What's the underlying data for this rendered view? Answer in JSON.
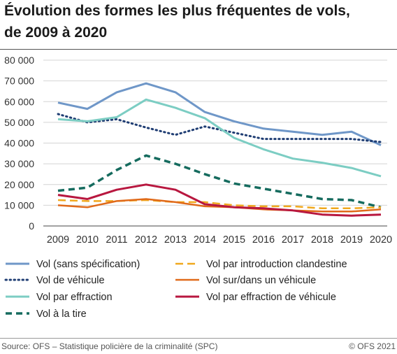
{
  "title_lines": [
    "Évolution des formes les plus fréquentes de vols,",
    "de 2009 à 2020"
  ],
  "source": "Source: OFS – Statistique policière de la criminalité (SPC)",
  "copyright": "© OFS 2021",
  "chart_data": {
    "type": "line",
    "x": [
      "2009",
      "2010",
      "2011",
      "2012",
      "2013",
      "2014",
      "2015",
      "2016",
      "2017",
      "2018",
      "2019",
      "2020"
    ],
    "ylim": [
      0,
      80000
    ],
    "yticks": [
      0,
      10000,
      20000,
      30000,
      40000,
      50000,
      60000,
      70000,
      80000
    ],
    "ytick_labels": [
      "0",
      "10 000",
      "20 000",
      "30 000",
      "40 000",
      "50 000",
      "60 000",
      "70 000",
      "80 000"
    ],
    "grid": "horizontal",
    "legend_placement": "bottom",
    "series": [
      {
        "name": "Vol (sans spécification)",
        "color": "#6f97c8",
        "style": "solid",
        "width": 3,
        "values": [
          59500,
          56500,
          64500,
          68800,
          64500,
          55000,
          50500,
          47000,
          45500,
          44000,
          45500,
          39000
        ]
      },
      {
        "name": "Vol de véhicule",
        "color": "#1f3d73",
        "style": "dotted",
        "width": 3,
        "values": [
          54000,
          50000,
          51500,
          47500,
          44000,
          48000,
          45000,
          42000,
          42000,
          42000,
          42000,
          40500
        ]
      },
      {
        "name": "Vol par effraction",
        "color": "#7ccdc3",
        "style": "solid",
        "width": 3,
        "values": [
          51500,
          50500,
          52500,
          61000,
          57000,
          52000,
          42500,
          37000,
          32500,
          30500,
          28000,
          24000
        ]
      },
      {
        "name": "Vol à la tire",
        "color": "#156b5e",
        "style": "dashed",
        "width": 3.5,
        "values": [
          17000,
          18500,
          27000,
          34000,
          30000,
          25000,
          20500,
          18000,
          15500,
          13000,
          12500,
          9000
        ]
      },
      {
        "name": "Vol par introduction clandestine",
        "color": "#f0a81e",
        "style": "longdash",
        "width": 2.5,
        "values": [
          12500,
          12000,
          12000,
          12500,
          11500,
          11500,
          10000,
          9500,
          9500,
          8500,
          8500,
          9000
        ]
      },
      {
        "name": "Vol sur/dans un véhicule",
        "color": "#e06a1a",
        "style": "solid",
        "width": 2.5,
        "values": [
          10000,
          9000,
          12000,
          13000,
          11500,
          9500,
          9000,
          8000,
          7500,
          7000,
          7000,
          8000
        ]
      },
      {
        "name": "Vol par effraction de véhicule",
        "color": "#b8173f",
        "style": "solid",
        "width": 3,
        "values": [
          15000,
          13000,
          17500,
          20000,
          17500,
          10500,
          9000,
          8500,
          7500,
          5500,
          5000,
          5500
        ]
      }
    ],
    "legend_columns": [
      [
        "Vol (sans spécification)",
        "Vol de véhicule",
        "Vol par effraction",
        "Vol à la tire"
      ],
      [
        "Vol par introduction clandestine",
        "Vol sur/dans un véhicule",
        "Vol par effraction de véhicule"
      ]
    ]
  }
}
